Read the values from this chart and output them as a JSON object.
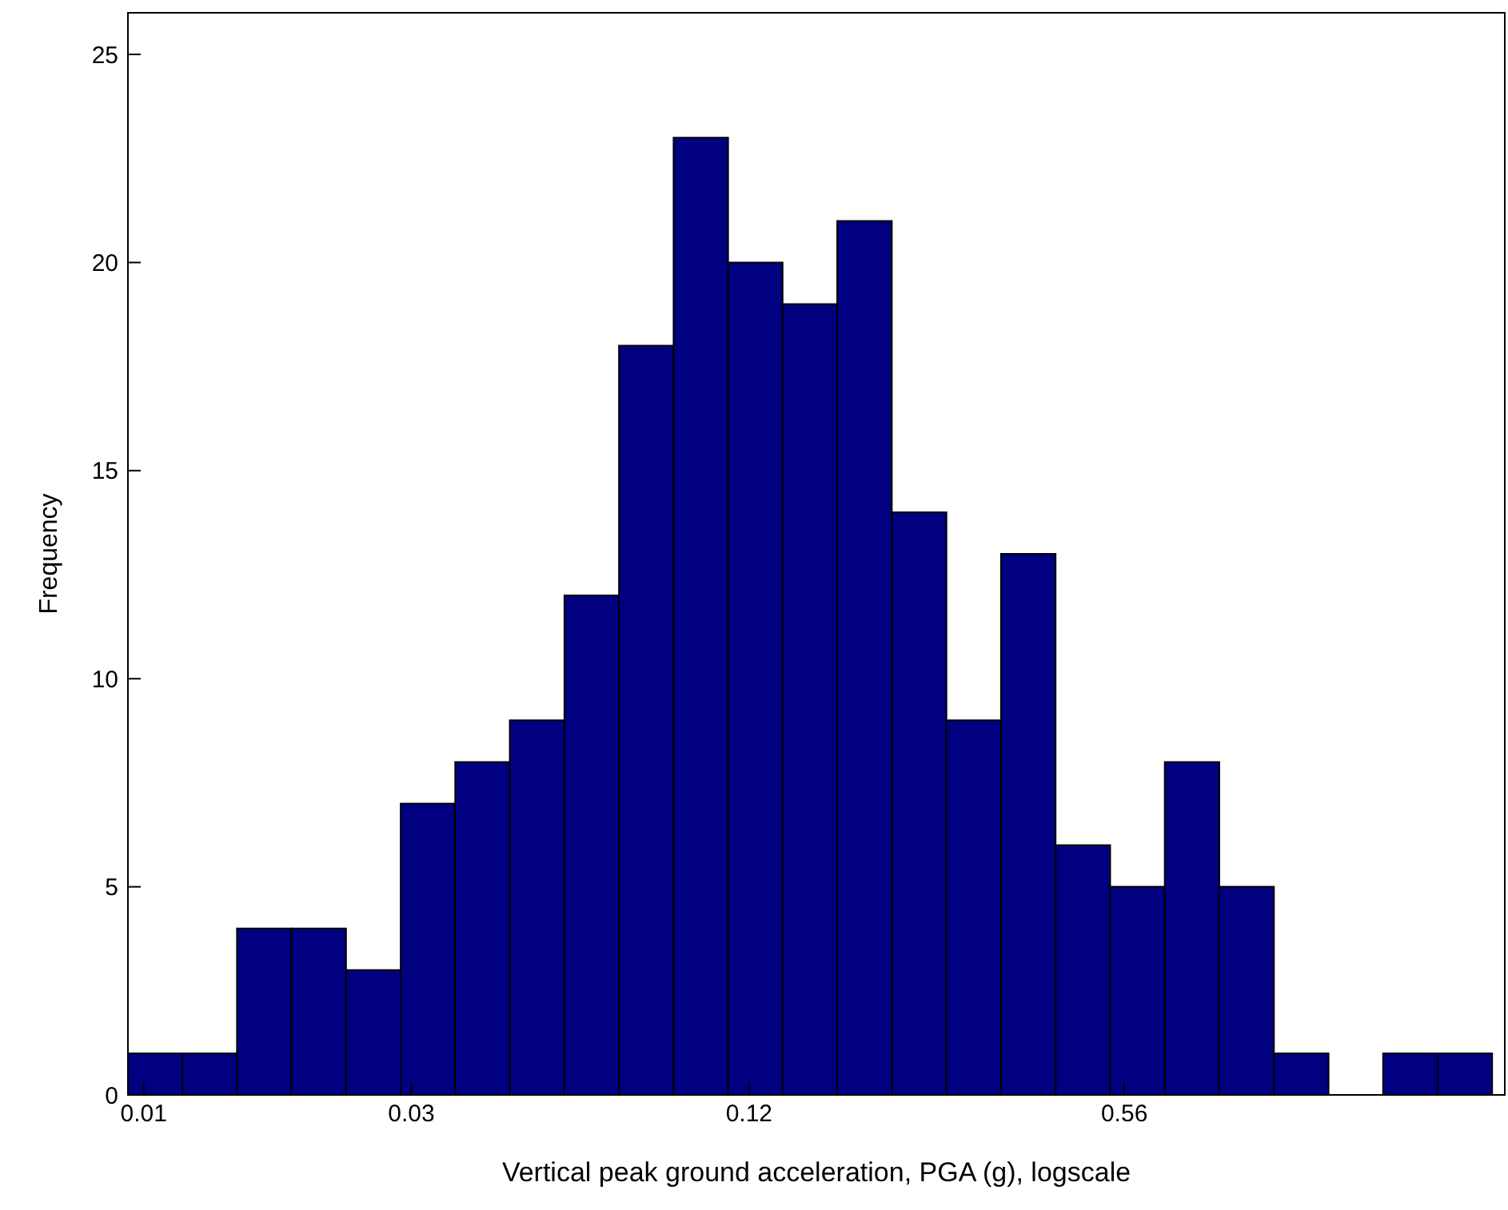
{
  "chart_data": {
    "type": "histogram",
    "xlabel": "Vertical peak ground acceleration, PGA (g), logscale",
    "ylabel": "Frequency",
    "log": "x",
    "color": "#000080",
    "bins": [
      0.00937,
      0.01172,
      0.01466,
      0.01834,
      0.02294,
      0.02871,
      0.03591,
      0.04493,
      0.05622,
      0.07034,
      0.08801,
      0.1101,
      0.1377,
      0.1723,
      0.2156,
      0.2698,
      0.3375,
      0.4223,
      0.5284,
      0.6611,
      0.827,
      1.035,
      1.295,
      1.62,
      2.026,
      2.535
    ],
    "values": [
      1,
      1,
      4,
      4,
      3,
      7,
      8,
      9,
      12,
      18,
      23,
      20,
      19,
      21,
      14,
      9,
      13,
      6,
      5,
      8,
      5,
      1,
      0,
      1,
      1
    ],
    "xlim": [
      0.00937,
      2.67
    ],
    "xticks": [
      0.01,
      0.03,
      0.12,
      0.56
    ],
    "ylim": [
      0,
      26
    ],
    "yticks": [
      0,
      5,
      10,
      15,
      20,
      25
    ]
  }
}
